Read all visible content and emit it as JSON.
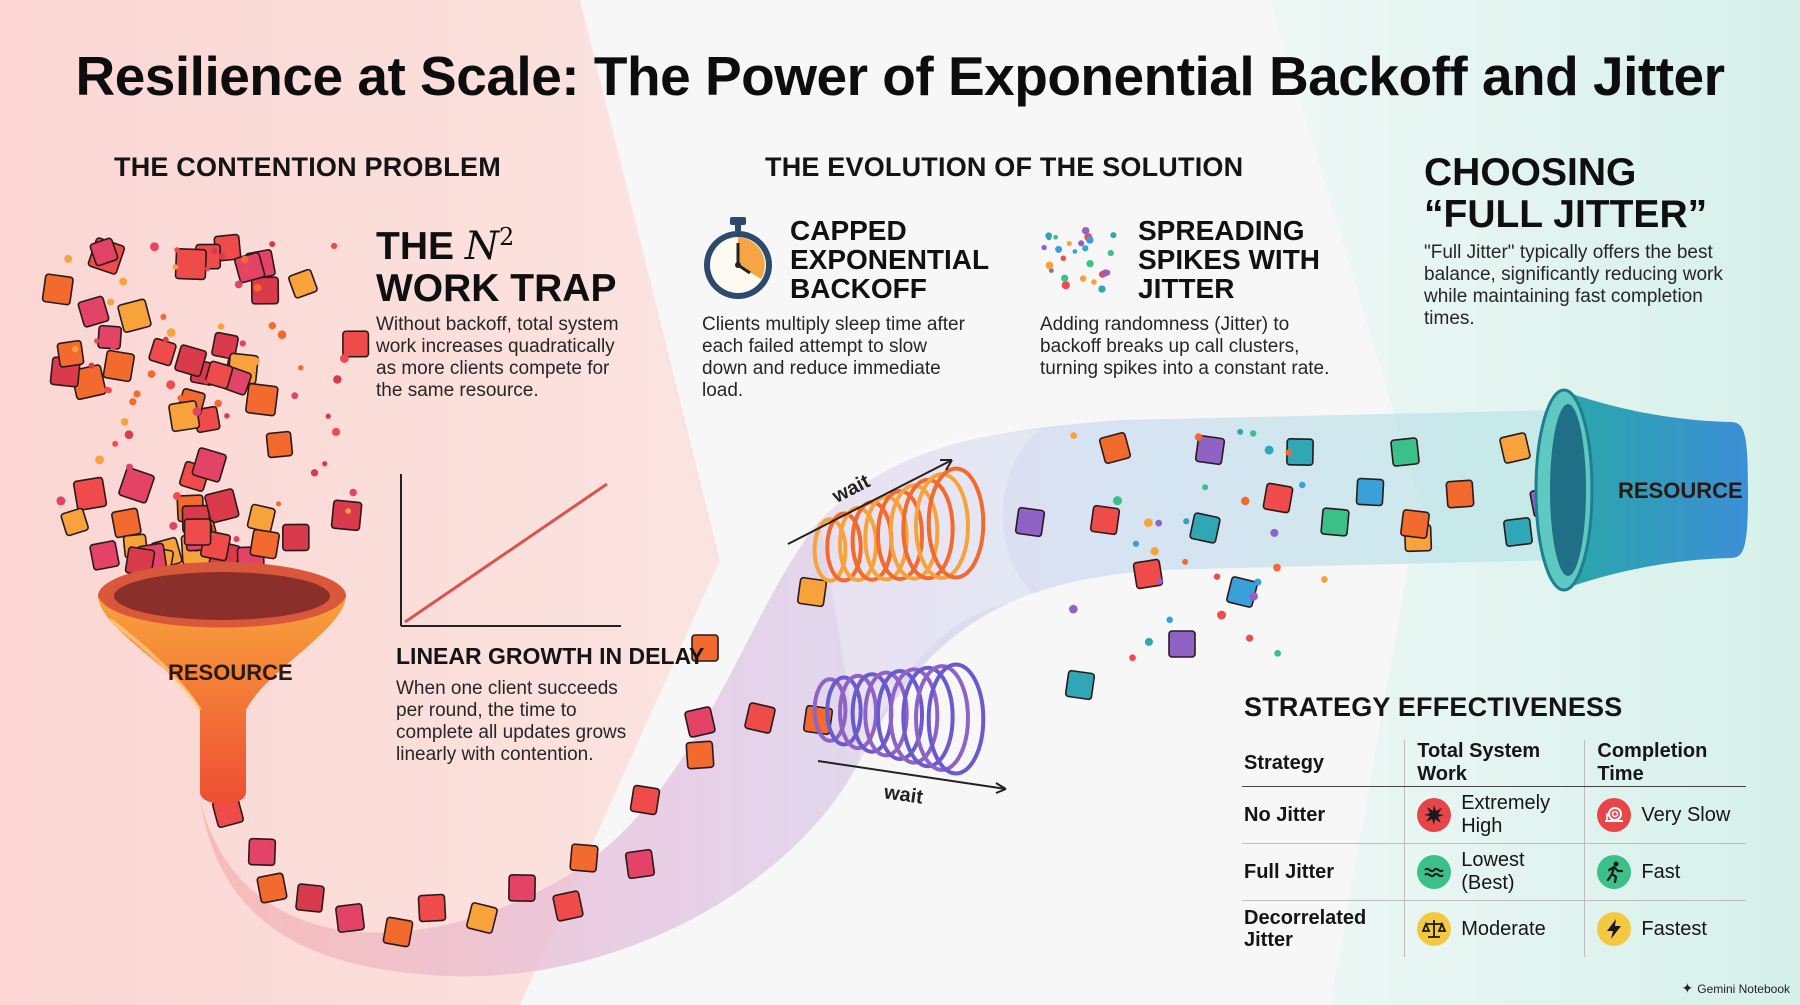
{
  "title": "Resilience at Scale: The Power of Exponential Backoff and Jitter",
  "contention": {
    "section_title": "THE CONTENTION PROBLEM",
    "work_trap_prefix": "THE ",
    "work_trap_var": "N",
    "work_trap_exp": "2",
    "work_trap_suffix": "WORK TRAP",
    "work_trap_text": "Without backoff, total system work increases quadratically as more clients compete for the same resource.",
    "resource_label": "RESOURCE",
    "chart_title": "LINEAR GROWTH IN DELAY",
    "chart_text": "When one client succeeds per round, the time to complete all updates grows linearly with contention."
  },
  "evolution": {
    "section_title": "THE EVOLUTION OF THE SOLUTION",
    "capped_title": "CAPPED EXPONENTIAL BACKOFF",
    "capped_text": "Clients multiply sleep time after each failed attempt to slow down and reduce immediate load.",
    "jitter_title": "SPREADING SPIKES WITH JITTER",
    "jitter_text": "Adding randomness (Jitter) to backoff breaks up call clusters, turning spikes into a constant rate.",
    "wait_label": "wait"
  },
  "choosing": {
    "title": "CHOOSING “FULL JITTER”",
    "text": "\"Full Jitter\" typically offers the best balance, significantly reducing work while maintaining fast completion times.",
    "resource_label": "RESOURCE"
  },
  "effectiveness": {
    "title": "STRATEGY EFFECTIVENESS",
    "headers": [
      "Strategy",
      "Total System Work",
      "Completion Time"
    ],
    "rows": [
      {
        "strategy": "No Jitter",
        "work": "Extremely High",
        "work_icon": "starburst-icon",
        "work_color": "#e8454b",
        "time": "Very Slow",
        "time_icon": "snail-icon",
        "time_color": "#e8454b"
      },
      {
        "strategy": "Full Jitter",
        "work": "Lowest (Best)",
        "work_icon": "wave-icon",
        "work_color": "#3cc08a",
        "time": "Fast",
        "time_icon": "runner-icon",
        "time_color": "#3cc08a"
      },
      {
        "strategy": "Decorrelated Jitter",
        "work": "Moderate",
        "work_icon": "scale-icon",
        "work_color": "#f5c842",
        "time": "Fastest",
        "time_icon": "lightning-icon",
        "time_color": "#f5c842"
      }
    ]
  },
  "watermark": "Gemini Notebook",
  "colors": {
    "warm_bg": "#fbd9d6",
    "cool_bg": "#d9f2ec",
    "funnel_orange": "#f26a2e",
    "line_red": "#d9534f",
    "teal": "#2fa7b5"
  }
}
